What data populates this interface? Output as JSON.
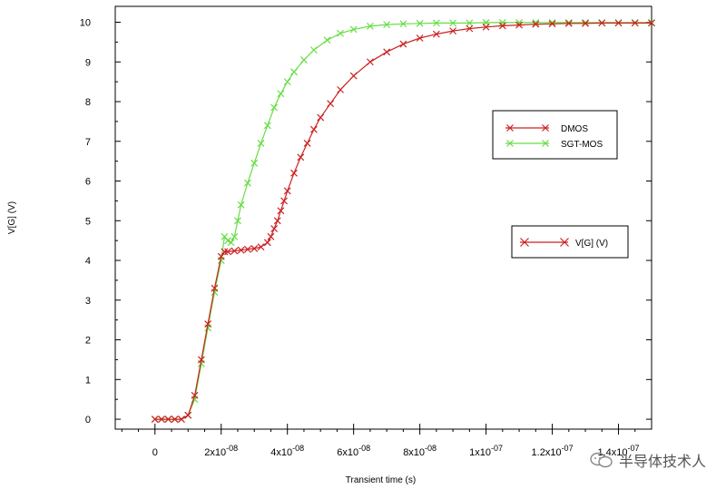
{
  "chart_data": {
    "type": "line",
    "ylabel": "V[G] (V)",
    "xlabel": "Transient time (s)",
    "xlim": [
      -1.2e-08,
      1.5e-07
    ],
    "ylim": [
      -0.25,
      10.4
    ],
    "y_ticks": [
      0,
      1,
      2,
      3,
      4,
      5,
      6,
      7,
      8,
      9,
      10
    ],
    "y_tick_labels": [
      "0",
      "1",
      "2",
      "3",
      "4",
      "5",
      "6",
      "7",
      "8",
      "9",
      "10"
    ],
    "x_ticks": [
      0,
      2e-08,
      4e-08,
      6e-08,
      8e-08,
      1e-07,
      1.2e-07,
      1.4e-07
    ],
    "x_tick_labels": [
      {
        "base": "0",
        "exp": ""
      },
      {
        "base": "2x10",
        "exp": "-08"
      },
      {
        "base": "4x10",
        "exp": "-08"
      },
      {
        "base": "6x10",
        "exp": "-08"
      },
      {
        "base": "8x10",
        "exp": "-08"
      },
      {
        "base": "1x10",
        "exp": "-07"
      },
      {
        "base": "1.2x10",
        "exp": "-07"
      },
      {
        "base": "1.4x10",
        "exp": "-07"
      }
    ],
    "grid": false,
    "legends": [
      {
        "position": "right-middle-upper",
        "entries": [
          "DMOS",
          "SGT-MOS"
        ]
      },
      {
        "position": "right-middle",
        "entries": [
          "V[G] (V)"
        ]
      }
    ],
    "series": [
      {
        "name": "DMOS",
        "color": "#cc2222",
        "x": [
          0,
          2e-09,
          4e-09,
          6e-09,
          8e-09,
          1e-08,
          1.2e-08,
          1.4e-08,
          1.6e-08,
          1.8e-08,
          2e-08,
          2.1e-08,
          2.2e-08,
          2.4e-08,
          2.6e-08,
          2.8e-08,
          3e-08,
          3.2e-08,
          3.4e-08,
          3.5e-08,
          3.6e-08,
          3.7e-08,
          3.8e-08,
          3.9e-08,
          4e-08,
          4.2e-08,
          4.4e-08,
          4.6e-08,
          4.8e-08,
          5e-08,
          5.3e-08,
          5.6e-08,
          6e-08,
          6.5e-08,
          7e-08,
          7.5e-08,
          8e-08,
          8.5e-08,
          9e-08,
          9.5e-08,
          1e-07,
          1.05e-07,
          1.1e-07,
          1.15e-07,
          1.2e-07,
          1.25e-07,
          1.3e-07,
          1.35e-07,
          1.4e-07,
          1.45e-07,
          1.5e-07
        ],
        "values": [
          0,
          0,
          0,
          0,
          0,
          0.1,
          0.6,
          1.5,
          2.4,
          3.3,
          4.1,
          4.22,
          4.22,
          4.24,
          4.26,
          4.28,
          4.3,
          4.34,
          4.45,
          4.6,
          4.8,
          5.0,
          5.25,
          5.5,
          5.75,
          6.2,
          6.6,
          6.95,
          7.3,
          7.6,
          7.95,
          8.3,
          8.65,
          9.0,
          9.25,
          9.45,
          9.6,
          9.7,
          9.78,
          9.84,
          9.88,
          9.91,
          9.93,
          9.95,
          9.96,
          9.97,
          9.97,
          9.98,
          9.98,
          9.98,
          9.98
        ]
      },
      {
        "name": "SGT-MOS",
        "color": "#66dd44",
        "x": [
          0,
          2e-09,
          4e-09,
          6e-09,
          8e-09,
          1e-08,
          1.2e-08,
          1.4e-08,
          1.6e-08,
          1.8e-08,
          2e-08,
          2.1e-08,
          2.2e-08,
          2.3e-08,
          2.4e-08,
          2.5e-08,
          2.6e-08,
          2.8e-08,
          3e-08,
          3.2e-08,
          3.4e-08,
          3.6e-08,
          3.8e-08,
          4e-08,
          4.2e-08,
          4.5e-08,
          4.8e-08,
          5.2e-08,
          5.6e-08,
          6e-08,
          6.5e-08,
          7e-08,
          7.5e-08,
          8e-08,
          8.5e-08,
          9e-08,
          9.5e-08,
          1e-07,
          1.05e-07,
          1.1e-07,
          1.15e-07,
          1.2e-07,
          1.25e-07,
          1.3e-07,
          1.35e-07,
          1.4e-07,
          1.45e-07,
          1.5e-07
        ],
        "values": [
          0,
          0,
          0,
          0,
          0,
          0.1,
          0.5,
          1.4,
          2.3,
          3.2,
          4.0,
          4.6,
          4.5,
          4.45,
          4.6,
          5.0,
          5.4,
          5.95,
          6.45,
          6.95,
          7.4,
          7.85,
          8.2,
          8.5,
          8.75,
          9.05,
          9.3,
          9.55,
          9.72,
          9.82,
          9.9,
          9.94,
          9.96,
          9.97,
          9.98,
          9.98,
          9.98,
          9.99,
          9.99,
          9.99,
          9.99,
          9.99,
          9.99,
          9.99,
          9.99,
          9.99,
          9.99,
          9.99
        ]
      }
    ]
  },
  "watermark": {
    "text": "半导体技术人",
    "icon": "wechat-icon"
  }
}
